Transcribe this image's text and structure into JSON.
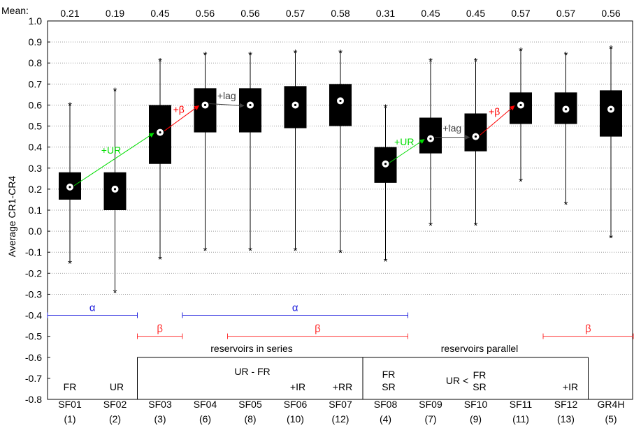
{
  "chart_data": {
    "type": "box",
    "ylabel": "Average CR1-CR4",
    "ylim": [
      -0.8,
      1.0
    ],
    "yticks": [
      "1.0",
      "0.9",
      "0.8",
      "0.7",
      "0.6",
      "0.5",
      "0.4",
      "0.3",
      "0.2",
      "0.1",
      "0.0",
      "-0.1",
      "-0.2",
      "-0.3",
      "-0.4",
      "-0.5",
      "-0.6",
      "-0.7",
      "-0.8"
    ],
    "grid": "horizontal dotted",
    "mean_label": "Mean:",
    "models": [
      {
        "name": "SF01",
        "id": "(1)",
        "mean": "0.21",
        "min": -0.15,
        "q1": 0.15,
        "median": 0.21,
        "q3": 0.28,
        "max": 0.6
      },
      {
        "name": "SF02",
        "id": "(2)",
        "mean": "0.19",
        "min": -0.29,
        "q1": 0.1,
        "median": 0.2,
        "q3": 0.28,
        "max": 0.67
      },
      {
        "name": "SF03",
        "id": "(3)",
        "mean": "0.45",
        "min": -0.13,
        "q1": 0.32,
        "median": 0.47,
        "q3": 0.6,
        "max": 0.81
      },
      {
        "name": "SF04",
        "id": "(6)",
        "mean": "0.56",
        "min": -0.09,
        "q1": 0.47,
        "median": 0.6,
        "q3": 0.68,
        "max": 0.84
      },
      {
        "name": "SF05",
        "id": "(8)",
        "mean": "0.56",
        "min": -0.09,
        "q1": 0.47,
        "median": 0.6,
        "q3": 0.68,
        "max": 0.84
      },
      {
        "name": "SF06",
        "id": "(10)",
        "mean": "0.57",
        "min": -0.09,
        "q1": 0.49,
        "median": 0.6,
        "q3": 0.69,
        "max": 0.85
      },
      {
        "name": "SF07",
        "id": "(12)",
        "mean": "0.58",
        "min": -0.1,
        "q1": 0.5,
        "median": 0.62,
        "q3": 0.7,
        "max": 0.85
      },
      {
        "name": "SF08",
        "id": "(4)",
        "mean": "0.31",
        "min": -0.14,
        "q1": 0.23,
        "median": 0.32,
        "q3": 0.4,
        "max": 0.59
      },
      {
        "name": "SF09",
        "id": "(7)",
        "mean": "0.45",
        "min": 0.03,
        "q1": 0.37,
        "median": 0.44,
        "q3": 0.54,
        "max": 0.81
      },
      {
        "name": "SF10",
        "id": "(9)",
        "mean": "0.45",
        "min": 0.03,
        "q1": 0.38,
        "median": 0.45,
        "q3": 0.56,
        "max": 0.81
      },
      {
        "name": "SF11",
        "id": "(11)",
        "mean": "0.57",
        "min": 0.24,
        "q1": 0.51,
        "median": 0.6,
        "q3": 0.66,
        "max": 0.86
      },
      {
        "name": "SF12",
        "id": "(13)",
        "mean": "0.57",
        "min": 0.13,
        "q1": 0.51,
        "median": 0.58,
        "q3": 0.66,
        "max": 0.84
      },
      {
        "name": "GR4H",
        "id": "(5)",
        "mean": "0.56",
        "min": -0.03,
        "q1": 0.45,
        "median": 0.58,
        "q3": 0.67,
        "max": 0.87
      }
    ],
    "arrows": [
      {
        "from": 0,
        "to": 2,
        "label": "+UR",
        "color": "#00dd00"
      },
      {
        "from": 2,
        "to": 3,
        "label": "+β",
        "color": "#ff0000"
      },
      {
        "from": 3,
        "to": 4,
        "label": "+lag",
        "color": "#404040"
      },
      {
        "from": 7,
        "to": 8,
        "label": "+UR",
        "color": "#00dd00"
      },
      {
        "from": 8,
        "to": 9,
        "label": "+lag",
        "color": "#404040"
      },
      {
        "from": 9,
        "to": 10,
        "label": "+β",
        "color": "#ff0000"
      }
    ],
    "spans": [
      {
        "label": "α",
        "color": "#2222dd",
        "y": -0.4,
        "from": 0,
        "to": 1
      },
      {
        "label": "α",
        "color": "#2222dd",
        "y": -0.4,
        "from": 2,
        "to": 7
      },
      {
        "label": "β",
        "color": "#ff3333",
        "y": -0.5,
        "from": 1,
        "to": 2
      },
      {
        "label": "β",
        "color": "#ff3333",
        "y": -0.5,
        "from": 3,
        "to": 7
      },
      {
        "label": "β",
        "color": "#ff3333",
        "y": -0.5,
        "from": 10,
        "to": 12
      }
    ],
    "annotations": {
      "reservoirs_series": "reservoirs in series",
      "reservoirs_parallel": "reservoirs parallel",
      "ur_fr": "UR - FR",
      "ur_lt": "UR <",
      "fr1": "FR",
      "ur1": "UR",
      "ir6": "+IR",
      "rr7": "+RR",
      "fr8": "FR",
      "sr8": "SR",
      "fr_p": "FR",
      "sr_p": "SR",
      "ir12": "+IR"
    }
  }
}
